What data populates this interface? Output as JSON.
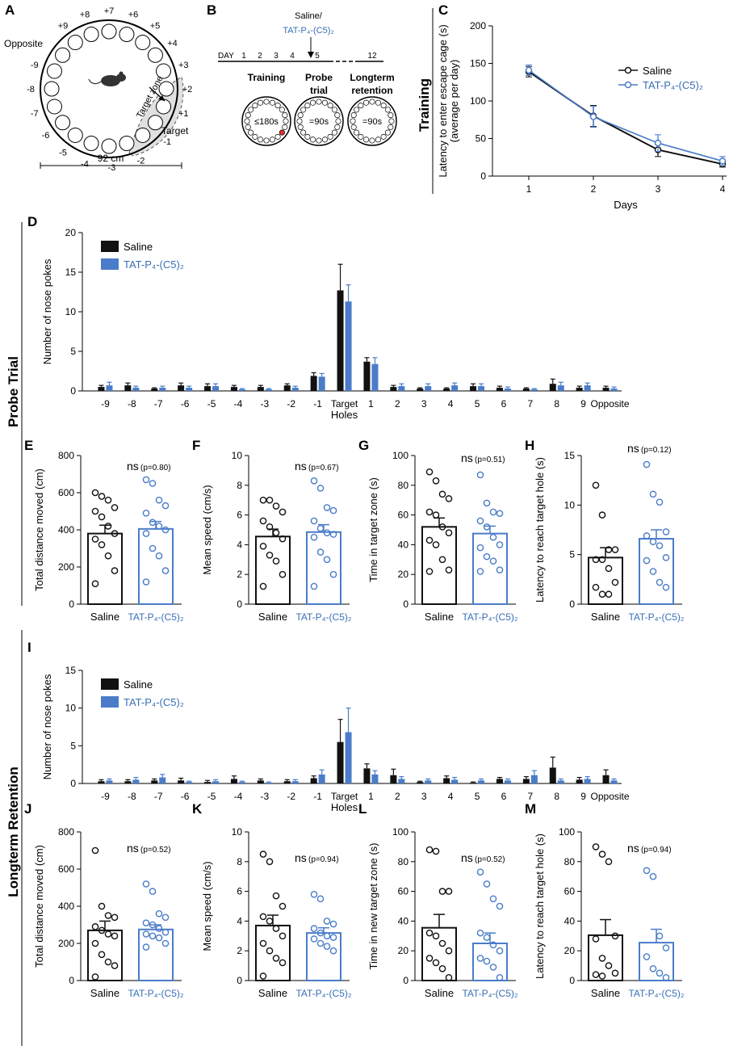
{
  "colors": {
    "saline": "#111111",
    "tat": "#4a7cc9",
    "tat_text": "#3a6fb5",
    "zone": "#e0e0e0"
  },
  "sections": {
    "probe": "Probe Trial",
    "longterm": "Longterm Retention",
    "training": "Training"
  },
  "panelA": {
    "letter": "A",
    "hole_labels": [
      "+9",
      "+8",
      "+7",
      "+6",
      "+5",
      "+4",
      "+3",
      "+2",
      "+1",
      "-1",
      "-2",
      "-3",
      "-4",
      "-5",
      "-6",
      "-7",
      "-8",
      "-9"
    ],
    "opposite": "Opposite",
    "target": "Target",
    "target_zone": "Target zone",
    "scale": "92 cm"
  },
  "panelB": {
    "letter": "B",
    "arrow_label_1": "Saline/",
    "arrow_label_2": "TAT-P₄-(C5)₂",
    "day_label": "DAY",
    "days": [
      "1",
      "2",
      "3",
      "4",
      "5",
      "12"
    ],
    "phases": [
      "Training",
      "Probe\ntrial",
      "Longterm\nretention"
    ],
    "durations": [
      "≤180s",
      "=90s",
      "=90s"
    ]
  },
  "chart_data": [
    {
      "id": "C",
      "type": "line",
      "title": "",
      "xlabel": "Days",
      "ylabel": "Latency to enter escape cage (s)\n(average per day)",
      "x": [
        1,
        2,
        3,
        4
      ],
      "ylim": [
        0,
        200
      ],
      "yticks": [
        0,
        50,
        100,
        150,
        200
      ],
      "series": [
        {
          "name": "Saline",
          "values": [
            139,
            80,
            35,
            16
          ],
          "err": [
            7,
            14,
            9,
            4
          ]
        },
        {
          "name": "TAT-P₄-(C5)₂",
          "values": [
            141,
            79,
            44,
            20
          ],
          "err": [
            7,
            14,
            11,
            6
          ]
        }
      ]
    },
    {
      "id": "D",
      "type": "bar",
      "xlabel": "Holes",
      "ylabel": "Number of nose pokes",
      "ylim": [
        0,
        20
      ],
      "yticks": [
        0,
        5,
        10,
        15,
        20
      ],
      "categories": [
        "-9",
        "-8",
        "-7",
        "-6",
        "-5",
        "-4",
        "-3",
        "-2",
        "-1",
        "Target",
        "1",
        "2",
        "3",
        "4",
        "5",
        "6",
        "7",
        "8",
        "9",
        "Opposite"
      ],
      "series": [
        {
          "name": "Saline",
          "values": [
            0.5,
            0.7,
            0.3,
            0.7,
            0.6,
            0.5,
            0.5,
            0.7,
            1.9,
            12.7,
            3.7,
            0.5,
            0.3,
            0.3,
            0.6,
            0.4,
            0.3,
            0.9,
            0.4,
            0.4
          ],
          "err": [
            0.2,
            0.3,
            0.1,
            0.3,
            0.3,
            0.2,
            0.2,
            0.2,
            0.4,
            3.3,
            0.5,
            0.2,
            0.1,
            0.1,
            0.3,
            0.2,
            0.1,
            0.6,
            0.2,
            0.2
          ]
        },
        {
          "name": "TAT-P₄-(C5)₂",
          "values": [
            0.7,
            0.4,
            0.4,
            0.4,
            0.6,
            0.2,
            0.2,
            0.4,
            1.8,
            11.3,
            3.4,
            0.6,
            0.6,
            0.7,
            0.6,
            0.3,
            0.2,
            0.7,
            0.7,
            0.3
          ],
          "err": [
            0.4,
            0.2,
            0.2,
            0.2,
            0.3,
            0.1,
            0.1,
            0.2,
            0.4,
            2.1,
            0.8,
            0.3,
            0.3,
            0.3,
            0.3,
            0.2,
            0.1,
            0.4,
            0.3,
            0.2
          ]
        }
      ]
    },
    {
      "id": "E",
      "type": "bar",
      "ylabel": "Total distance moved (cm)",
      "ylim": [
        0,
        800
      ],
      "yticks": [
        0,
        200,
        400,
        600,
        800
      ],
      "annotation": "ns",
      "pvalue": "(p=0.80)",
      "categories": [
        "Saline",
        "TAT-P₄-(C5)₂"
      ],
      "values": [
        380,
        405
      ],
      "err": [
        45,
        40
      ],
      "points": [
        [
          600,
          580,
          560,
          520,
          500,
          470,
          420,
          380,
          350,
          320,
          260,
          180,
          110
        ],
        [
          670,
          650,
          560,
          530,
          490,
          440,
          420,
          400,
          380,
          300,
          260,
          180,
          120
        ]
      ]
    },
    {
      "id": "F",
      "type": "bar",
      "ylabel": "Mean speed (cm/s)",
      "ylim": [
        0,
        10
      ],
      "yticks": [
        0,
        2,
        4,
        6,
        8,
        10
      ],
      "annotation": "ns",
      "pvalue": "(p=0.67)",
      "categories": [
        "Saline",
        "TAT-P₄-(C5)₂"
      ],
      "values": [
        4.55,
        4.85
      ],
      "err": [
        0.5,
        0.5
      ],
      "points": [
        [
          7.0,
          7.0,
          6.6,
          6.2,
          5.6,
          5.2,
          4.8,
          4.4,
          3.9,
          3.3,
          2.9,
          2.0,
          1.2
        ],
        [
          8.3,
          7.8,
          6.5,
          6.3,
          5.6,
          5.1,
          4.8,
          4.7,
          4.5,
          3.5,
          3.0,
          2.0,
          1.2
        ]
      ]
    },
    {
      "id": "G",
      "type": "bar",
      "ylabel": "Time in target zone (s)",
      "ylim": [
        0,
        100
      ],
      "yticks": [
        0,
        20,
        40,
        60,
        80,
        100
      ],
      "annotation": "ns",
      "pvalue": "(p=0.51)",
      "categories": [
        "Saline",
        "TAT-P₄-(C5)₂"
      ],
      "values": [
        52,
        47.5
      ],
      "err": [
        6,
        5
      ],
      "points": [
        [
          89,
          83,
          74,
          71,
          62,
          60,
          52,
          48,
          43,
          40,
          30,
          23,
          22
        ],
        [
          87,
          68,
          62,
          61,
          56,
          52,
          45,
          40,
          38,
          32,
          29,
          23,
          22
        ]
      ]
    },
    {
      "id": "H",
      "type": "bar",
      "ylabel": "Latency to reach target hole (s)",
      "ylim": [
        0,
        15
      ],
      "yticks": [
        0,
        5,
        10,
        15
      ],
      "annotation": "ns",
      "pvalue": "(p=0.12)",
      "categories": [
        "Saline",
        "TAT-P₄-(C5)₂"
      ],
      "values": [
        4.7,
        6.6
      ],
      "err": [
        1.0,
        0.9
      ],
      "points": [
        [
          12.0,
          9.0,
          5.5,
          5.5,
          4.5,
          4.5,
          3.6,
          2.2,
          1.7,
          1.0,
          1.0
        ],
        [
          14.1,
          11.1,
          10.3,
          7.3,
          6.9,
          6.3,
          5.9,
          4.7,
          4.4,
          3.3,
          2.2,
          1.7
        ]
      ]
    },
    {
      "id": "I",
      "type": "bar",
      "xlabel": "Holes",
      "ylabel": "Number of nose pokes",
      "ylim": [
        0,
        15
      ],
      "yticks": [
        0,
        5,
        10,
        15
      ],
      "categories": [
        "-9",
        "-8",
        "-7",
        "-6",
        "-5",
        "-4",
        "-3",
        "-2",
        "-1",
        "Target",
        "1",
        "2",
        "3",
        "4",
        "5",
        "6",
        "7",
        "8",
        "9",
        "Opposite"
      ],
      "series": [
        {
          "name": "Saline",
          "values": [
            0.3,
            0.3,
            0.4,
            0.4,
            0.2,
            0.6,
            0.4,
            0.3,
            0.7,
            5.5,
            2.0,
            1.1,
            0.2,
            0.7,
            0.1,
            0.6,
            0.6,
            2.1,
            0.5,
            1.1
          ],
          "err": [
            0.2,
            0.2,
            0.2,
            0.3,
            0.2,
            0.4,
            0.2,
            0.2,
            0.3,
            3.0,
            0.6,
            0.8,
            0.1,
            0.3,
            0.1,
            0.2,
            0.3,
            1.4,
            0.3,
            0.7
          ]
        },
        {
          "name": "TAT-P₄-(C5)₂",
          "values": [
            0.4,
            0.5,
            0.8,
            0.2,
            0.3,
            0.2,
            0.1,
            0.3,
            1.2,
            6.8,
            1.2,
            0.6,
            0.4,
            0.5,
            0.4,
            0.4,
            1.1,
            0.4,
            0.6,
            0.4
          ],
          "err": [
            0.2,
            0.3,
            0.4,
            0.1,
            0.2,
            0.1,
            0.1,
            0.2,
            0.6,
            3.2,
            0.5,
            0.3,
            0.2,
            0.3,
            0.2,
            0.2,
            0.6,
            0.2,
            0.3,
            0.2
          ]
        }
      ]
    },
    {
      "id": "J",
      "type": "bar",
      "ylabel": "Total distance moved (cm)",
      "ylim": [
        0,
        800
      ],
      "yticks": [
        0,
        200,
        400,
        600,
        800
      ],
      "annotation": "ns",
      "pvalue": "(p=0.52)",
      "categories": [
        "Saline",
        "TAT-P₄-(C5)₂"
      ],
      "values": [
        270,
        275
      ],
      "err": [
        50,
        25
      ],
      "points": [
        [
          700,
          400,
          350,
          340,
          290,
          270,
          250,
          240,
          200,
          140,
          100,
          80,
          20
        ],
        [
          520,
          480,
          360,
          340,
          310,
          300,
          280,
          260,
          250,
          240,
          230,
          200,
          180
        ]
      ]
    },
    {
      "id": "K",
      "type": "bar",
      "ylabel": "Mean speed (cm/s)",
      "ylim": [
        0,
        10
      ],
      "yticks": [
        0,
        2,
        4,
        6,
        8,
        10
      ],
      "annotation": "ns",
      "pvalue": "(p=0.94)",
      "categories": [
        "Saline",
        "TAT-P₄-(C5)₂"
      ],
      "values": [
        3.7,
        3.2
      ],
      "err": [
        0.7,
        0.35
      ],
      "points": [
        [
          8.5,
          8.0,
          5.7,
          5.0,
          4.3,
          4.0,
          3.5,
          3.0,
          2.5,
          2.0,
          1.5,
          1.2,
          0.3
        ],
        [
          5.8,
          5.5,
          4.0,
          3.8,
          3.5,
          3.2,
          3.0,
          2.9,
          2.8,
          2.5,
          2.3,
          2.0
        ]
      ]
    },
    {
      "id": "L",
      "type": "bar",
      "ylabel": "Time in new target zone (s)",
      "ylim": [
        0,
        100
      ],
      "yticks": [
        0,
        20,
        40,
        60,
        80,
        100
      ],
      "annotation": "ns",
      "pvalue": "(p=0.52)",
      "categories": [
        "Saline",
        "TAT-P₄-(C5)₂"
      ],
      "values": [
        35.5,
        25
      ],
      "err": [
        9,
        7
      ],
      "points": [
        [
          88,
          87,
          60,
          60,
          32,
          30,
          25,
          20,
          15,
          12,
          8,
          2
        ],
        [
          73,
          65,
          55,
          50,
          32,
          29,
          24,
          20,
          15,
          13,
          9,
          2
        ]
      ]
    },
    {
      "id": "M",
      "type": "bar",
      "ylabel": "Latency to reach target hole (s)",
      "ylim": [
        0,
        100
      ],
      "yticks": [
        0,
        20,
        40,
        60,
        80,
        100
      ],
      "annotation": "ns",
      "pvalue": "(p=0.94)",
      "categories": [
        "Saline",
        "TAT-P₄-(C5)₂"
      ],
      "values": [
        30.5,
        25.5
      ],
      "err": [
        10.5,
        9
      ],
      "points": [
        [
          90,
          85,
          80,
          30,
          28,
          15,
          10,
          5,
          4,
          3
        ],
        [
          74,
          70,
          30,
          22,
          16,
          8,
          5,
          2
        ]
      ]
    }
  ]
}
